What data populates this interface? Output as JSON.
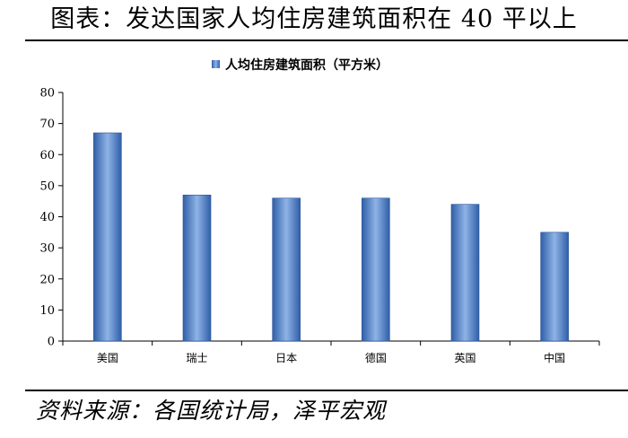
{
  "header": {
    "title": "图表：发达国家人均住房建筑面积在 40 平以上"
  },
  "footer": {
    "source": "资料来源：各国统计局，泽平宏观"
  },
  "chart_data": {
    "type": "bar",
    "categories": [
      "美国",
      "瑞士",
      "日本",
      "德国",
      "英国",
      "中国"
    ],
    "series": [
      {
        "name": "人均住房建筑面积（平方米）",
        "values": [
          67,
          47,
          46,
          46,
          44,
          35
        ]
      }
    ],
    "ylim": [
      0,
      80
    ],
    "yticks": [
      0,
      10,
      20,
      30,
      40,
      50,
      60,
      70,
      80
    ],
    "legend_position": "top-center",
    "grid": false,
    "bar_color": "#4472c4"
  }
}
